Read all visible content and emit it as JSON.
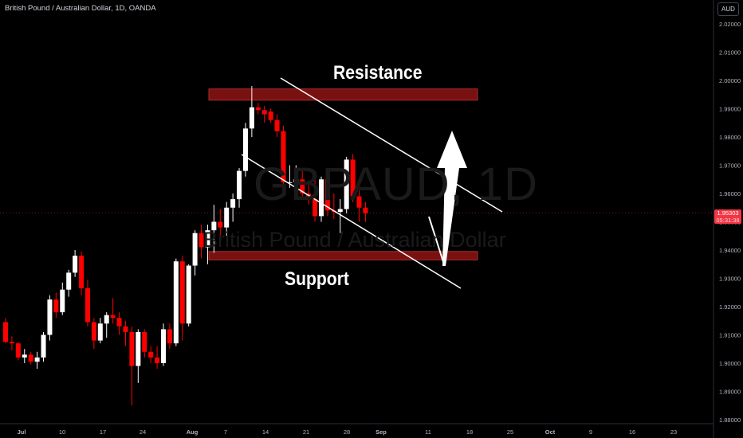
{
  "header": {
    "title": "British Pound / Australian Dollar, 1D, OANDA",
    "currency": "AUD"
  },
  "watermark": {
    "symbol": "GBPAUD, 1D",
    "description": "British Pound / Australian Dollar"
  },
  "price_tag": {
    "price": "1.95303",
    "countdown": "05:31:38",
    "color": "#f23645"
  },
  "annotations": {
    "resistance": "Resistance",
    "support": "Support"
  },
  "colors": {
    "up_candle": "#ffffff",
    "down_candle": "#ff0000",
    "zone": "#7a1111",
    "background": "#000000"
  },
  "chart_data": {
    "type": "candlestick",
    "symbol": "GBPAUD",
    "timeframe": "1D",
    "source": "OANDA",
    "y_axis": {
      "min": 1.88,
      "max": 2.02,
      "ticks": [
        "2.02000",
        "2.01000",
        "2.00000",
        "1.99000",
        "1.98000",
        "1.97000",
        "1.96000",
        "1.95000",
        "1.94000",
        "1.93000",
        "1.92000",
        "1.91000",
        "1.90000",
        "1.89000",
        "1.88000"
      ]
    },
    "x_axis": {
      "labels": [
        "Jul",
        "10",
        "17",
        "24",
        "Aug",
        "7",
        "14",
        "21",
        "28",
        "Sep",
        "11",
        "18",
        "25",
        "Oct",
        "9",
        "16",
        "23"
      ]
    },
    "candles": [
      [
        "2023-06-30",
        1.9145,
        1.916,
        1.907,
        1.9075
      ],
      [
        "2023-07-03",
        1.9075,
        1.9095,
        1.9045,
        1.907
      ],
      [
        "2023-07-04",
        1.907,
        1.9075,
        1.901,
        1.902
      ],
      [
        "2023-07-05",
        1.902,
        1.905,
        1.9,
        1.903
      ],
      [
        "2023-07-06",
        1.903,
        1.904,
        1.8995,
        1.9005
      ],
      [
        "2023-07-07",
        1.9005,
        1.904,
        1.898,
        1.902
      ],
      [
        "2023-07-10",
        1.902,
        1.911,
        1.9005,
        1.91
      ],
      [
        "2023-07-11",
        1.91,
        1.924,
        1.908,
        1.9225
      ],
      [
        "2023-07-12",
        1.9225,
        1.925,
        1.916,
        1.918
      ],
      [
        "2023-07-13",
        1.918,
        1.9285,
        1.917,
        1.926
      ],
      [
        "2023-07-14",
        1.926,
        1.933,
        1.9235,
        1.932
      ],
      [
        "2023-07-17",
        1.932,
        1.94,
        1.9305,
        1.938
      ],
      [
        "2023-07-18",
        1.938,
        1.9395,
        1.924,
        1.9265
      ],
      [
        "2023-07-19",
        1.9265,
        1.9295,
        1.913,
        1.9145
      ],
      [
        "2023-07-20",
        1.9145,
        1.916,
        1.905,
        1.908
      ],
      [
        "2023-07-21",
        1.908,
        1.916,
        1.907,
        1.914
      ],
      [
        "2023-07-24",
        1.914,
        1.918,
        1.909,
        1.917
      ],
      [
        "2023-07-25",
        1.917,
        1.923,
        1.914,
        1.916
      ],
      [
        "2023-07-26",
        1.916,
        1.918,
        1.91,
        1.913
      ],
      [
        "2023-07-27",
        1.913,
        1.915,
        1.906,
        1.911
      ],
      [
        "2023-07-28",
        1.911,
        1.913,
        1.885,
        1.899
      ],
      [
        "2023-07-31",
        1.899,
        1.912,
        1.893,
        1.911
      ],
      [
        "2023-08-01",
        1.911,
        1.912,
        1.902,
        1.904
      ],
      [
        "2023-08-02",
        1.904,
        1.906,
        1.9,
        1.902
      ],
      [
        "2023-08-03",
        1.902,
        1.906,
        1.898,
        1.9
      ],
      [
        "2023-08-04",
        1.9,
        1.914,
        1.899,
        1.912
      ],
      [
        "2023-08-07",
        1.912,
        1.914,
        1.905,
        1.907
      ],
      [
        "2023-08-08",
        1.907,
        1.937,
        1.906,
        1.936
      ],
      [
        "2023-08-09",
        1.936,
        1.938,
        1.908,
        1.914
      ],
      [
        "2023-08-10",
        1.914,
        1.935,
        1.913,
        1.9345
      ],
      [
        "2023-08-11",
        1.9345,
        1.947,
        1.931,
        1.946
      ],
      [
        "2023-08-14",
        1.946,
        1.949,
        1.937,
        1.941
      ],
      [
        "2023-08-15",
        1.941,
        1.949,
        1.935,
        1.947
      ],
      [
        "2023-08-16",
        1.947,
        1.956,
        1.939,
        1.95
      ],
      [
        "2023-08-17",
        1.95,
        1.9545,
        1.944,
        1.948
      ],
      [
        "2023-08-18",
        1.948,
        1.957,
        1.945,
        1.955
      ],
      [
        "2023-08-21",
        1.955,
        1.96,
        1.95,
        1.958
      ],
      [
        "2023-08-22",
        1.958,
        1.969,
        1.955,
        1.968
      ],
      [
        "2023-08-23",
        1.968,
        1.985,
        1.966,
        1.983
      ],
      [
        "2023-08-24",
        1.983,
        1.998,
        1.98,
        1.9905
      ],
      [
        "2023-08-25",
        1.9905,
        1.992,
        1.988,
        1.9895
      ],
      [
        "2023-08-28",
        1.9895,
        1.991,
        1.985,
        1.988
      ],
      [
        "2023-08-29",
        1.989,
        1.99,
        1.985,
        1.986
      ],
      [
        "2023-08-30",
        1.986,
        1.988,
        1.98,
        1.982
      ],
      [
        "2023-08-31",
        1.982,
        1.984,
        1.962,
        1.964
      ],
      [
        "2023-09-01",
        1.964,
        1.97,
        1.962,
        1.964
      ],
      [
        "2023-09-04",
        1.964,
        1.97,
        1.962,
        1.965
      ],
      [
        "2023-09-05",
        1.965,
        1.968,
        1.958,
        1.96
      ],
      [
        "2023-09-06",
        1.96,
        1.964,
        1.956,
        1.958
      ],
      [
        "2023-09-07",
        1.958,
        1.966,
        1.95,
        1.952
      ],
      [
        "2023-09-08",
        1.952,
        1.966,
        1.95,
        1.965
      ],
      [
        "2023-09-11",
        1.965,
        1.966,
        1.952,
        1.954
      ],
      [
        "2023-09-12",
        1.954,
        1.96,
        1.951,
        1.9535
      ],
      [
        "2023-09-13",
        1.9535,
        1.958,
        1.946,
        1.9545
      ],
      [
        "2023-09-14",
        1.9545,
        1.973,
        1.953,
        1.972
      ],
      [
        "2023-09-15",
        1.972,
        1.974,
        1.957,
        1.959
      ],
      [
        "2023-09-18",
        1.959,
        1.961,
        1.95,
        1.955
      ],
      [
        "2023-09-19",
        1.955,
        1.957,
        1.95,
        1.953
      ]
    ],
    "last_price": 1.95303,
    "zones": [
      {
        "name": "Resistance",
        "from": 1.993,
        "to": 1.997
      },
      {
        "name": "Support",
        "from": 1.9365,
        "to": 1.9395
      }
    ]
  }
}
